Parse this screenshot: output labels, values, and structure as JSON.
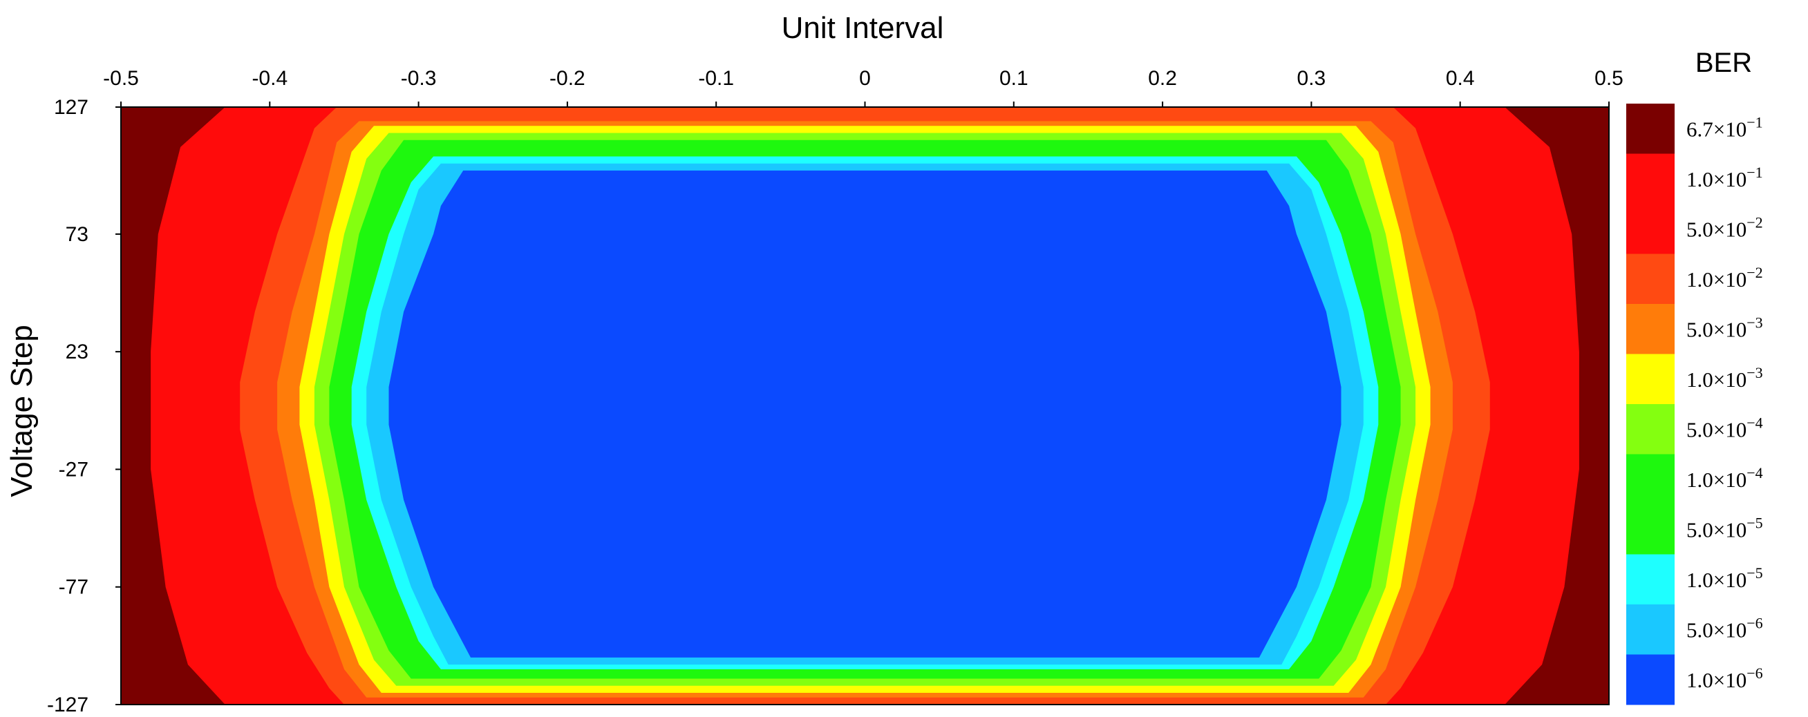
{
  "chart_data": {
    "type": "heatmap",
    "title": "",
    "xlabel": "Unit Interval",
    "ylabel": "Voltage Step",
    "xlim": [
      -0.5,
      0.5
    ],
    "ylim": [
      -127,
      127
    ],
    "x_ticks": [
      "-0.5",
      "-0.4",
      "-0.3",
      "-0.2",
      "-0.1",
      "0",
      "0.1",
      "0.2",
      "0.3",
      "0.4",
      "0.5"
    ],
    "y_ticks": [
      "127",
      "73",
      "23",
      "-27",
      "-77",
      "-127"
    ],
    "y_tick_values": [
      127,
      73,
      23,
      -27,
      -77,
      -127
    ],
    "colorbar": {
      "title": "BER",
      "levels": [
        {
          "mantissa": "6.7",
          "exponent": "−1",
          "color": "#7a0000"
        },
        {
          "mantissa": "1.0",
          "exponent": "−1",
          "color": "#ff0b0b"
        },
        {
          "mantissa": "5.0",
          "exponent": "−2",
          "color": "#ff0b0b"
        },
        {
          "mantissa": "1.0",
          "exponent": "−2",
          "color": "#ff4a12"
        },
        {
          "mantissa": "5.0",
          "exponent": "−3",
          "color": "#ff7c0a"
        },
        {
          "mantissa": "1.0",
          "exponent": "−3",
          "color": "#ffff00"
        },
        {
          "mantissa": "5.0",
          "exponent": "−4",
          "color": "#84ff10"
        },
        {
          "mantissa": "1.0",
          "exponent": "−4",
          "color": "#1ef80e"
        },
        {
          "mantissa": "5.0",
          "exponent": "−5",
          "color": "#1ef80e"
        },
        {
          "mantissa": "1.0",
          "exponent": "−5",
          "color": "#1effff"
        },
        {
          "mantissa": "5.0",
          "exponent": "−6",
          "color": "#1ac8ff"
        },
        {
          "mantissa": "1.0",
          "exponent": "−6",
          "color": "#0b4aff"
        }
      ]
    },
    "contours": [
      {
        "name": "6.7e-1",
        "color": "#7a0000",
        "halfwidth": [
          [
            127,
            0.5
          ],
          [
            -127,
            0.5
          ]
        ]
      },
      {
        "name": "1.0e-1",
        "color": "#ff0b0b",
        "halfwidth": [
          [
            127,
            0.43
          ],
          [
            110,
            0.46
          ],
          [
            73,
            0.475
          ],
          [
            23,
            0.48
          ],
          [
            -27,
            0.48
          ],
          [
            -77,
            0.47
          ],
          [
            -110,
            0.455
          ],
          [
            -127,
            0.43
          ]
        ]
      },
      {
        "name": "1.0e-2",
        "color": "#ff4a12",
        "halfwidth": [
          [
            127,
            0.355
          ],
          [
            118,
            0.37
          ],
          [
            100,
            0.38
          ],
          [
            73,
            0.395
          ],
          [
            40,
            0.41
          ],
          [
            10,
            0.42
          ],
          [
            -10,
            0.42
          ],
          [
            -40,
            0.41
          ],
          [
            -77,
            0.395
          ],
          [
            -105,
            0.375
          ],
          [
            -120,
            0.36
          ],
          [
            -127,
            0.35
          ]
        ]
      },
      {
        "name": "5.0e-3",
        "color": "#ff7c0a",
        "halfwidth": [
          [
            121,
            0.34
          ],
          [
            112,
            0.355
          ],
          [
            73,
            0.37
          ],
          [
            40,
            0.385
          ],
          [
            10,
            0.395
          ],
          [
            -10,
            0.395
          ],
          [
            -40,
            0.385
          ],
          [
            -77,
            0.37
          ],
          [
            -112,
            0.35
          ],
          [
            -124,
            0.335
          ]
        ]
      },
      {
        "name": "1.0e-3",
        "color": "#ffff00",
        "halfwidth": [
          [
            119,
            0.33
          ],
          [
            108,
            0.345
          ],
          [
            73,
            0.36
          ],
          [
            40,
            0.37
          ],
          [
            8,
            0.38
          ],
          [
            -8,
            0.38
          ],
          [
            -40,
            0.37
          ],
          [
            -77,
            0.36
          ],
          [
            -110,
            0.34
          ],
          [
            -122,
            0.325
          ]
        ]
      },
      {
        "name": "5.0e-4",
        "color": "#84ff10",
        "halfwidth": [
          [
            116,
            0.32
          ],
          [
            105,
            0.335
          ],
          [
            73,
            0.35
          ],
          [
            40,
            0.36
          ],
          [
            8,
            0.37
          ],
          [
            -8,
            0.37
          ],
          [
            -40,
            0.36
          ],
          [
            -77,
            0.35
          ],
          [
            -108,
            0.33
          ],
          [
            -119,
            0.315
          ]
        ]
      },
      {
        "name": "1.0e-4",
        "color": "#1ef80e",
        "halfwidth": [
          [
            113,
            0.31
          ],
          [
            100,
            0.325
          ],
          [
            73,
            0.34
          ],
          [
            40,
            0.35
          ],
          [
            8,
            0.36
          ],
          [
            -8,
            0.36
          ],
          [
            -40,
            0.35
          ],
          [
            -77,
            0.34
          ],
          [
            -104,
            0.32
          ],
          [
            -116,
            0.305
          ]
        ]
      },
      {
        "name": "1.0e-5",
        "color": "#1effff",
        "halfwidth": [
          [
            106,
            0.29
          ],
          [
            95,
            0.305
          ],
          [
            73,
            0.32
          ],
          [
            40,
            0.335
          ],
          [
            8,
            0.345
          ],
          [
            -8,
            0.345
          ],
          [
            -40,
            0.335
          ],
          [
            -77,
            0.315
          ],
          [
            -100,
            0.3
          ],
          [
            -112,
            0.285
          ]
        ]
      },
      {
        "name": "5.0e-6",
        "color": "#1ac8ff",
        "halfwidth": [
          [
            103,
            0.285
          ],
          [
            92,
            0.3
          ],
          [
            73,
            0.31
          ],
          [
            40,
            0.325
          ],
          [
            8,
            0.335
          ],
          [
            -8,
            0.335
          ],
          [
            -40,
            0.325
          ],
          [
            -77,
            0.305
          ],
          [
            -98,
            0.29
          ],
          [
            -110,
            0.28
          ]
        ]
      },
      {
        "name": "1.0e-6",
        "color": "#0b4aff",
        "halfwidth": [
          [
            100,
            0.27
          ],
          [
            85,
            0.285
          ],
          [
            73,
            0.29
          ],
          [
            40,
            0.31
          ],
          [
            8,
            0.32
          ],
          [
            -8,
            0.32
          ],
          [
            -40,
            0.31
          ],
          [
            -77,
            0.29
          ],
          [
            -95,
            0.275
          ],
          [
            -107,
            0.265
          ]
        ]
      }
    ]
  }
}
